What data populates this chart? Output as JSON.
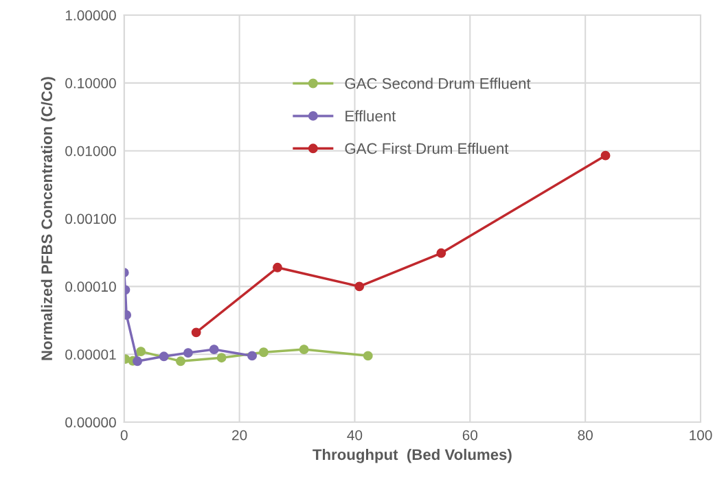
{
  "chart_data": {
    "type": "line",
    "xlabel": "Throughput  (Bed Volumes)",
    "ylabel": "Normalized PFBS Concentration (C/Co)",
    "log": "y",
    "grid": true,
    "legend": "top",
    "marker": "circle",
    "xlim": [
      0,
      100
    ],
    "xticks": [
      0,
      20,
      40,
      60,
      80,
      100
    ],
    "ylim": [
      1e-06,
      1
    ],
    "yticks": [
      {
        "value": 1e-06,
        "label": "0.00000"
      },
      {
        "value": 1e-05,
        "label": "0.00001"
      },
      {
        "value": 0.0001,
        "label": "0.00010"
      },
      {
        "value": 0.001,
        "label": "0.00100"
      },
      {
        "value": 0.01,
        "label": "0.01000"
      },
      {
        "value": 0.1,
        "label": "0.10000"
      },
      {
        "value": 1,
        "label": "1.00000"
      }
    ],
    "series": [
      {
        "name": "GAC Second Drum Effluent",
        "color": "#9bbb59",
        "x": [
          0.2,
          1.5,
          2.9,
          9.8,
          16.9,
          24.2,
          31.2,
          42.3
        ],
        "values": [
          8.5e-06,
          8e-06,
          1.1e-05,
          7.9e-06,
          8.9e-06,
          1.07e-05,
          1.18e-05,
          9.5e-06
        ]
      },
      {
        "name": "Effluent",
        "color": "#7b68b5",
        "x": [
          0,
          0.2,
          0.4,
          2.3,
          6.9,
          11.1,
          15.6,
          22.2
        ],
        "values": [
          0.00016,
          8.9e-05,
          3.8e-05,
          7.9e-06,
          9.3e-06,
          1.05e-05,
          1.18e-05,
          9.5e-06
        ]
      },
      {
        "name": "GAC First Drum Effluent",
        "color": "#c0282d",
        "x": [
          12.5,
          26.6,
          40.8,
          55.0,
          83.5
        ],
        "values": [
          2.1e-05,
          0.00019,
          0.0001,
          0.00031,
          0.0085
        ]
      }
    ]
  }
}
